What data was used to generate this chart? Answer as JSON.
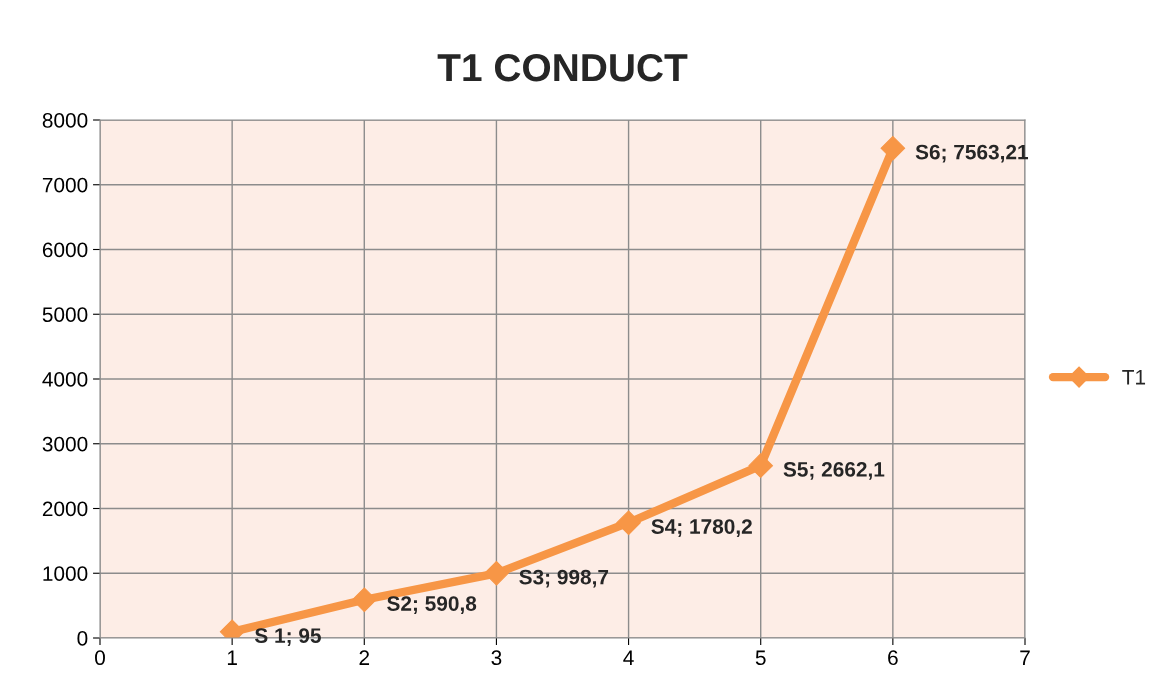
{
  "chart_data": {
    "type": "line",
    "title": "T1 CONDUCT",
    "x": [
      1,
      2,
      3,
      4,
      5,
      6
    ],
    "series": [
      {
        "name": "T1",
        "color": "#f79646",
        "values": [
          95,
          590.8,
          998.7,
          1780.2,
          2662.1,
          7563.21
        ],
        "value_labels": [
          "S 1; 95",
          "S2; 590,8",
          "S3; 998,7",
          "S4; 1780,2",
          "S5; 2662,1",
          "S6; 7563,21"
        ]
      }
    ],
    "xlim": [
      0,
      7
    ],
    "xticks": [
      0,
      1,
      2,
      3,
      4,
      5,
      6,
      7
    ],
    "ylim": [
      0,
      8000
    ],
    "yticks": [
      0,
      1000,
      2000,
      3000,
      4000,
      5000,
      6000,
      7000,
      8000
    ],
    "grid": true,
    "legend": "right",
    "marker": "diamond",
    "line_style": "solid"
  }
}
